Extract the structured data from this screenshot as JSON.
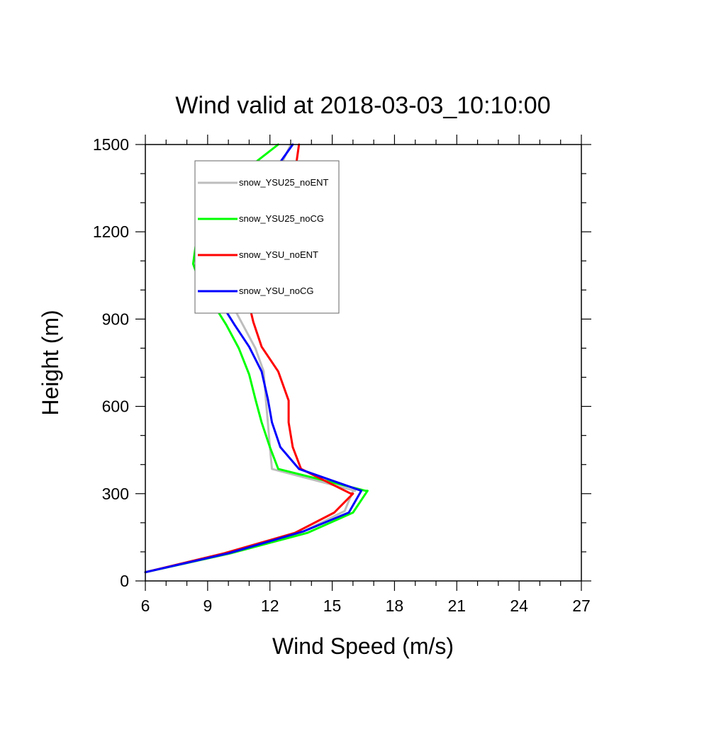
{
  "chart_data": {
    "type": "line",
    "title": "Wind valid at 2018-03-03_10:10:00",
    "xlabel": "Wind Speed (m/s)",
    "ylabel": "Height (m)",
    "xlim": [
      6,
      27
    ],
    "ylim": [
      0,
      1500
    ],
    "xticks": [
      "6",
      "9",
      "12",
      "15",
      "18",
      "21",
      "24",
      "27"
    ],
    "yticks": [
      "0",
      "300",
      "600",
      "900",
      "1200",
      "1500"
    ],
    "grid": false,
    "legend_position": "top-left",
    "series": [
      {
        "name": "snow_YSU25_noENT",
        "color": "#bdbdbd",
        "x": [
          6.0,
          10.0,
          13.6,
          15.6,
          16.0,
          16.1,
          12.1,
          12.0,
          11.9,
          11.8,
          11.7,
          11.3,
          10.7,
          10.1,
          9.7,
          9.6,
          9.6,
          10.0,
          10.8,
          11.6,
          12.4,
          13.0
        ],
        "y": [
          30,
          95,
          170,
          240,
          310,
          310,
          385,
          460,
          545,
          625,
          720,
          800,
          880,
          960,
          1030,
          1090,
          1130,
          1190,
          1280,
          1350,
          1410,
          1500
        ]
      },
      {
        "name": "snow_YSU25_noCG",
        "color": "#00ff00",
        "x": [
          6.0,
          10.1,
          13.8,
          16.0,
          16.7,
          16.6,
          12.4,
          12.0,
          11.6,
          11.3,
          11.0,
          10.5,
          9.9,
          9.2,
          8.6,
          8.3,
          8.5,
          9.3,
          10.6,
          12.4
        ],
        "y": [
          30,
          95,
          165,
          235,
          310,
          310,
          385,
          460,
          545,
          625,
          710,
          800,
          880,
          960,
          1030,
          1090,
          1190,
          1300,
          1400,
          1500
        ]
      },
      {
        "name": "snow_YSU_noENT",
        "color": "#ff0000",
        "x": [
          6.0,
          9.8,
          13.2,
          15.1,
          16.0,
          15.9,
          13.5,
          13.1,
          12.9,
          12.9,
          12.4,
          11.6,
          11.2,
          10.9,
          10.9,
          11.1,
          11.5,
          12.2,
          12.8,
          13.2,
          13.4
        ],
        "y": [
          30,
          95,
          165,
          235,
          300,
          300,
          385,
          460,
          545,
          620,
          720,
          805,
          890,
          980,
          1060,
          1110,
          1190,
          1260,
          1300,
          1400,
          1500
        ]
      },
      {
        "name": "snow_YSU_noCG",
        "color": "#0000ff",
        "x": [
          6.0,
          10.0,
          13.6,
          15.8,
          16.4,
          16.4,
          13.4,
          12.5,
          12.1,
          11.9,
          11.6,
          11.0,
          10.3,
          9.6,
          9.3,
          9.3,
          9.7,
          10.3,
          11.2,
          12.2,
          13.1
        ],
        "y": [
          30,
          95,
          170,
          235,
          310,
          310,
          385,
          460,
          545,
          625,
          720,
          805,
          880,
          960,
          1030,
          1090,
          1190,
          1280,
          1350,
          1410,
          1500
        ]
      }
    ]
  }
}
